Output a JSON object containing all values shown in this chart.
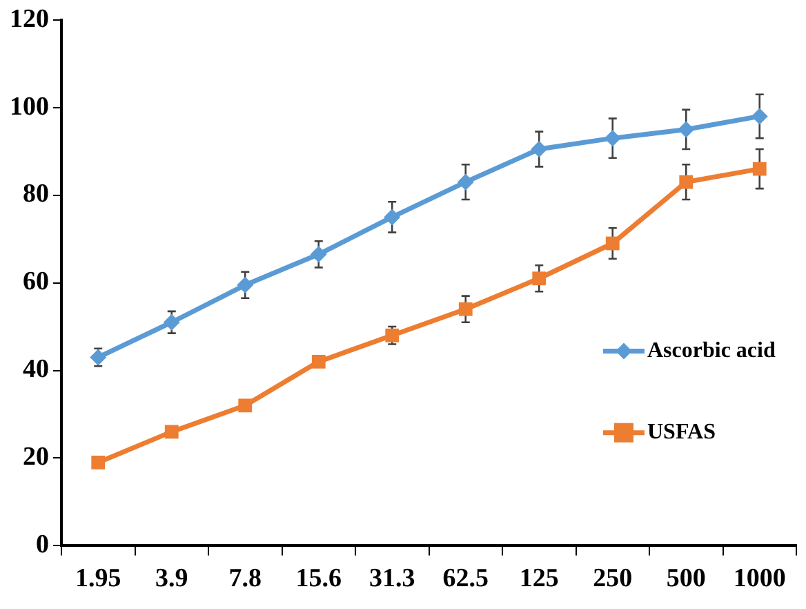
{
  "chart_data": {
    "type": "line",
    "categories": [
      "1.95",
      "3.9",
      "7.8",
      "15.6",
      "31.3",
      "62.5",
      "125",
      "250",
      "500",
      "1000"
    ],
    "series": [
      {
        "name": "Ascorbic acid",
        "color": "#5b9bd5",
        "marker": "diamond",
        "values": [
          43,
          51,
          59.5,
          66.5,
          75,
          83,
          90.5,
          93,
          95,
          98
        ],
        "errors": [
          2,
          2.5,
          3,
          3,
          3.5,
          4,
          4,
          4.5,
          4.5,
          5
        ]
      },
      {
        "name": "USFAS",
        "color": "#ed7d31",
        "marker": "square",
        "values": [
          19,
          26,
          32,
          42,
          48,
          54,
          61,
          69,
          83,
          86
        ],
        "errors": [
          null,
          null,
          null,
          null,
          2,
          3,
          3,
          3.5,
          4,
          4.5
        ]
      }
    ],
    "ylim": [
      0,
      120
    ],
    "yticks": [
      0,
      20,
      40,
      60,
      80,
      100,
      120
    ],
    "grid": false,
    "legend": "right"
  }
}
